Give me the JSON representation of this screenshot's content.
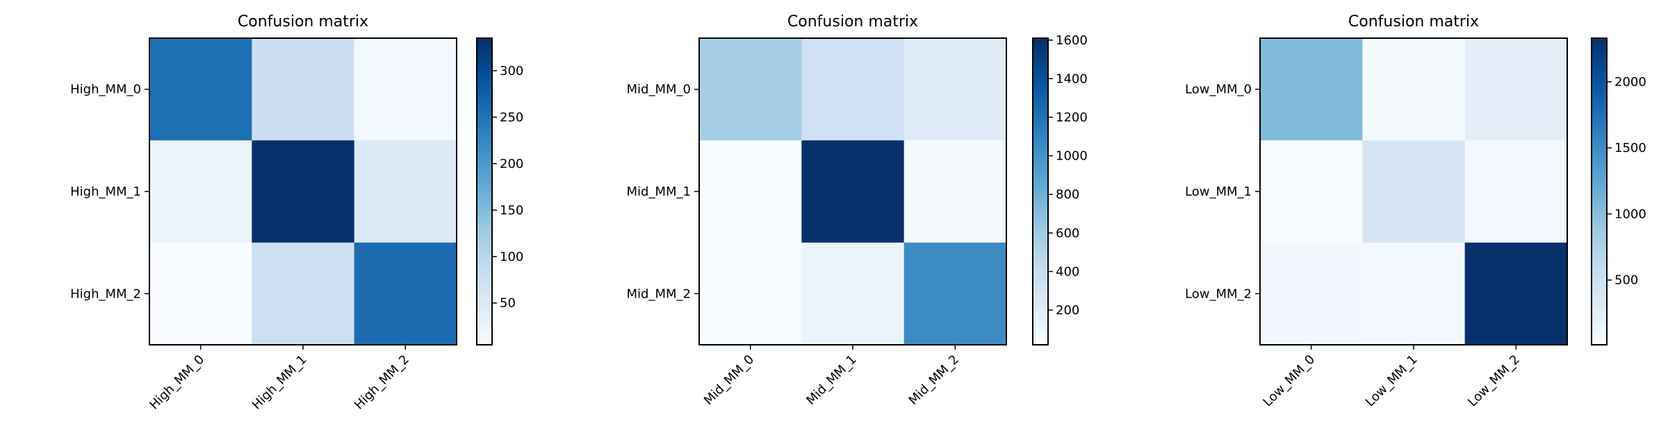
{
  "chart_data": [
    {
      "type": "heatmap",
      "title": "Confusion matrix",
      "colormap": "Blues",
      "row_labels": [
        "High_MM_0",
        "High_MM_1",
        "High_MM_2"
      ],
      "col_labels": [
        "High_MM_0",
        "High_MM_1",
        "High_MM_2"
      ],
      "values": [
        [
          255,
          78,
          12
        ],
        [
          25,
          335,
          50
        ],
        [
          5,
          75,
          260
        ]
      ],
      "colorbar_range": [
        5,
        335
      ],
      "colorbar_ticks": [
        50,
        100,
        150,
        200,
        250,
        300
      ]
    },
    {
      "type": "heatmap",
      "title": "Confusion matrix",
      "colormap": "Blues",
      "row_labels": [
        "Mid_MM_0",
        "Mid_MM_1",
        "Mid_MM_2"
      ],
      "col_labels": [
        "Mid_MM_0",
        "Mid_MM_1",
        "Mid_MM_2"
      ],
      "values": [
        [
          580,
          340,
          210
        ],
        [
          20,
          1610,
          40
        ],
        [
          25,
          110,
          1050
        ]
      ],
      "colorbar_range": [
        20,
        1610
      ],
      "colorbar_ticks": [
        200,
        400,
        600,
        800,
        1000,
        1200,
        1400,
        1600
      ]
    },
    {
      "type": "heatmap",
      "title": "Confusion matrix",
      "colormap": "Blues",
      "row_labels": [
        "Low_MM_0",
        "Low_MM_1",
        "Low_MM_2"
      ],
      "col_labels": [
        "Low_MM_0",
        "Low_MM_1",
        "Low_MM_2"
      ],
      "values": [
        [
          1050,
          30,
          240
        ],
        [
          15,
          400,
          70
        ],
        [
          80,
          60,
          2330
        ]
      ],
      "colorbar_range": [
        10,
        2330
      ],
      "colorbar_ticks": [
        500,
        1000,
        1500,
        2000
      ]
    }
  ]
}
